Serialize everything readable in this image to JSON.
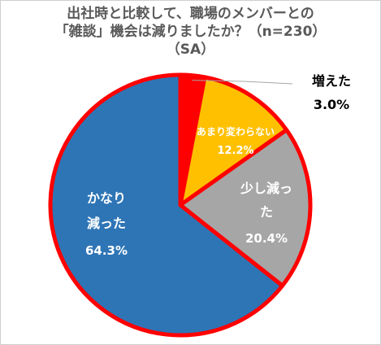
{
  "chart_data": {
    "type": "pie",
    "title_lines": [
      "出社時と比較して、職場のメンバーとの",
      "「雑談」機会は減りましたか？（n=230）",
      "（SA）"
    ],
    "slices": [
      {
        "label": "増えた",
        "value": 3.0,
        "value_text": "3.0%",
        "color": "#ff0000"
      },
      {
        "label": "あまり変わらない",
        "value": 12.2,
        "value_text": "12.2%",
        "color": "#ffc000"
      },
      {
        "label": "少し減った",
        "label_lines": [
          "少し減っ",
          "た"
        ],
        "value": 20.4,
        "value_text": "20.4%",
        "color": "#a6a6a6"
      },
      {
        "label": "かなり減った",
        "label_lines": [
          "かなり",
          "減った"
        ],
        "value": 64.3,
        "value_text": "64.3%",
        "color": "#2e75b6"
      }
    ],
    "start_angle_deg": 0,
    "direction": "clockwise",
    "slice_border_color": "#ff0000",
    "legend": "none"
  }
}
